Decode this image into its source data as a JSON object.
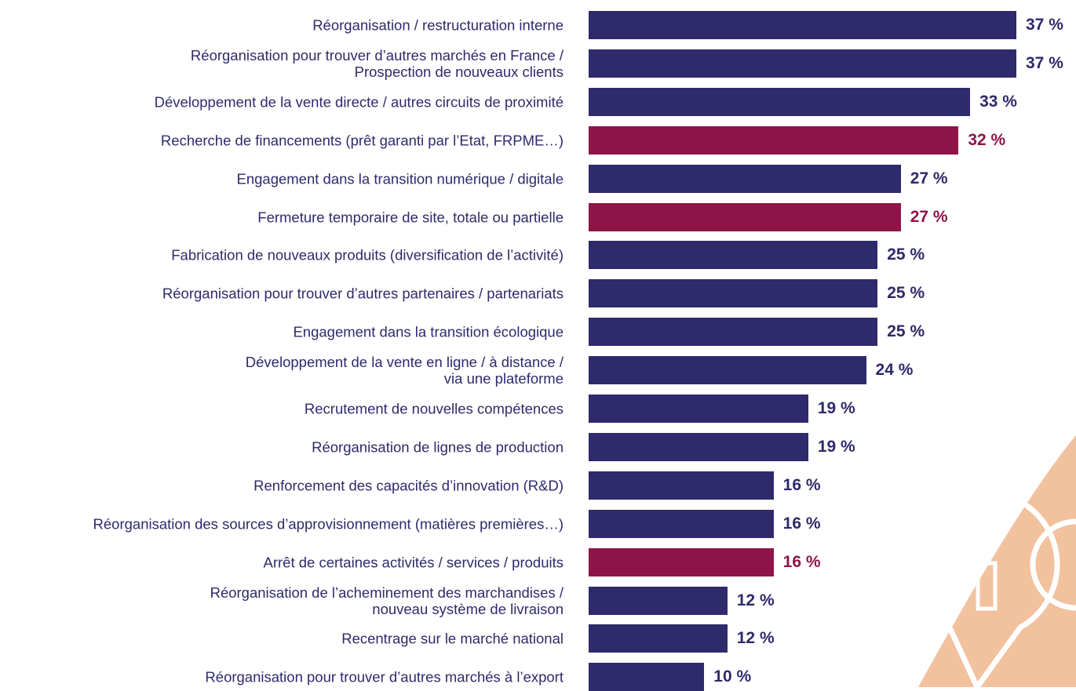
{
  "chart_data": {
    "type": "bar",
    "orientation": "horizontal",
    "categories": [
      "Réorganisation / restructuration interne",
      "Réorganisation pour trouver d’autres marchés en France /\nProspection de nouveaux clients",
      "Développement de la vente directe / autres circuits de proximité",
      "Recherche de financements (prêt garanti par l’Etat, FRPME…)",
      "Engagement dans la transition numérique / digitale",
      "Fermeture temporaire de site, totale ou partielle",
      "Fabrication de nouveaux produits (diversification de l’activité)",
      "Réorganisation pour trouver d’autres partenaires / partenariats",
      "Engagement dans la transition écologique",
      "Développement de la vente en ligne / à distance /\nvia une plateforme",
      "Recrutement de nouvelles compétences",
      "Réorganisation de lignes de production",
      "Renforcement des capacités d’innovation (R&D)",
      "Réorganisation des sources d’approvisionnement (matières premières…)",
      "Arrêt de certaines activités / services / produits",
      "Réorganisation de l’acheminement des marchandises /\nnouveau système de livraison",
      "Recentrage sur le marché national",
      "Réorganisation pour trouver d’autres marchés à l’export"
    ],
    "values": [
      37,
      37,
      33,
      32,
      27,
      27,
      25,
      25,
      25,
      24,
      19,
      19,
      16,
      16,
      16,
      12,
      12,
      10
    ],
    "value_labels": [
      "37 %",
      "37 %",
      "33 %",
      "32 %",
      "27 %",
      "27 %",
      "25 %",
      "25 %",
      "25 %",
      "24 %",
      "19 %",
      "19 %",
      "16 %",
      "16 %",
      "16 %",
      "12 %",
      "12 %",
      "10 %"
    ],
    "colors": [
      "#2e2a6b",
      "#2e2a6b",
      "#2e2a6b",
      "#8e1447",
      "#2e2a6b",
      "#8e1447",
      "#2e2a6b",
      "#2e2a6b",
      "#2e2a6b",
      "#2e2a6b",
      "#2e2a6b",
      "#2e2a6b",
      "#2e2a6b",
      "#2e2a6b",
      "#8e1447",
      "#2e2a6b",
      "#2e2a6b",
      "#2e2a6b"
    ]
  }
}
